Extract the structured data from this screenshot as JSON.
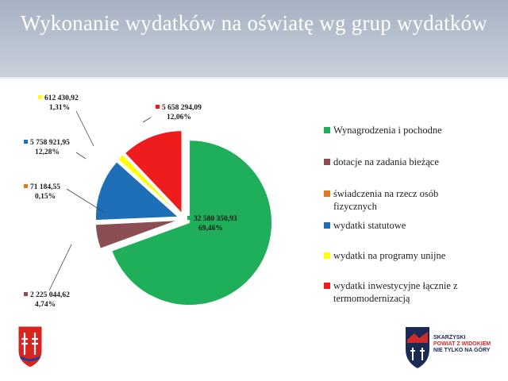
{
  "title": "Wykonanie wydatków na oświatę wg grup wydatków",
  "chart_data": {
    "type": "pie",
    "title": "",
    "slices": [
      {
        "name": "Wynagrodzenia i pochodne",
        "value_label": "32 580 350,93",
        "percent_label": "69,46%",
        "value": 32580350.93,
        "percent": 69.46,
        "color": "#1fae59",
        "exploded": true
      },
      {
        "name": "dotacje na zadania bieżące",
        "value_label": "2 225 044,62",
        "percent_label": "4,74%",
        "value": 2225044.62,
        "percent": 4.74,
        "color": "#8b4f53",
        "exploded": true
      },
      {
        "name": "świadczenia na rzecz osób fizycznych",
        "value_label": "71 184,55",
        "percent_label": "0,15%",
        "value": 71184.55,
        "percent": 0.15,
        "color": "#e07a1f",
        "exploded": true
      },
      {
        "name": "wydatki statutowe",
        "value_label": "5 758 921,95",
        "percent_label": "12,28%",
        "value": 5758921.95,
        "percent": 12.28,
        "color": "#1f6fb8",
        "exploded": true
      },
      {
        "name": "wydatki na programy unijne",
        "value_label": "612 430,92",
        "percent_label": "1,31%",
        "value": 612430.92,
        "percent": 1.31,
        "color": "#ffff00",
        "exploded": true
      },
      {
        "name": "wydatki inwestycyjne łącznie z termomodernizacją",
        "value_label": "5 658 294,09",
        "percent_label": "12,06%",
        "value": 5658294.09,
        "percent": 12.06,
        "color": "#ee1c1c",
        "exploded": true
      }
    ],
    "legend_position": "right"
  },
  "logos": {
    "right_line1": "SKARŻYSKI",
    "right_line2": "POWIAT Z WIDOKIEM",
    "right_line3": "NIE TYLKO NA GÓRY"
  }
}
